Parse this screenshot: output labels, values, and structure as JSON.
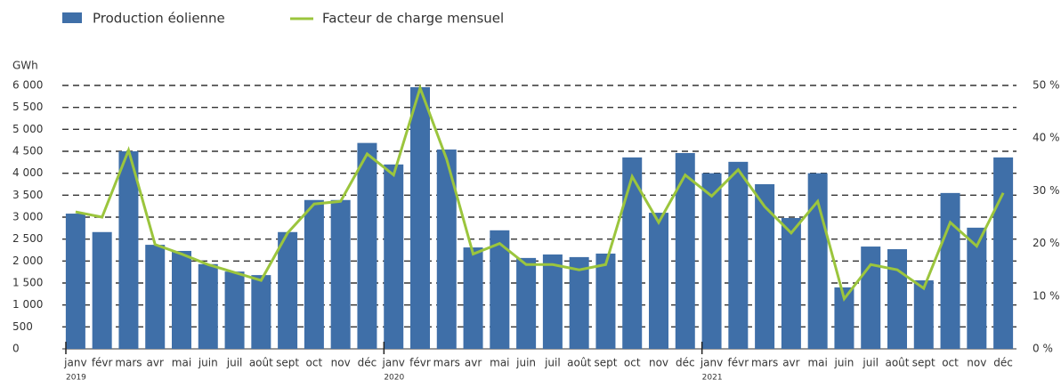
{
  "chart_data": {
    "type": "bar_line",
    "y_axis_label": "GWh",
    "categories": [
      "janv",
      "févr",
      "mars",
      "avr",
      "mai",
      "juin",
      "juil",
      "août",
      "sept",
      "oct",
      "nov",
      "déc",
      "janv",
      "févr",
      "mars",
      "avr",
      "mai",
      "juin",
      "juil",
      "août",
      "sept",
      "oct",
      "nov",
      "déc",
      "janv",
      "févr",
      "mars",
      "avr",
      "mai",
      "juin",
      "juil",
      "août",
      "sept",
      "oct",
      "nov",
      "déc"
    ],
    "year_labels": [
      "2019",
      "2020",
      "2021"
    ],
    "series": [
      {
        "name": "Production éolienne",
        "color": "#3f6fa8",
        "kind": "bar",
        "values": [
          3080,
          2660,
          4500,
          2370,
          2230,
          1930,
          1760,
          1680,
          2660,
          3390,
          3390,
          4690,
          4200,
          5960,
          4540,
          2310,
          2700,
          2070,
          2150,
          2090,
          2170,
          4360,
          3100,
          4460,
          4000,
          4260,
          3750,
          2980,
          4000,
          1400,
          2330,
          2270,
          1560,
          3550,
          2760,
          4360
        ]
      },
      {
        "name": "Facteur de charge mensuel",
        "color": "#9bc53d",
        "kind": "line",
        "axis": "y2",
        "values": [
          26,
          25,
          37.7,
          19.8,
          18,
          16,
          14.5,
          13,
          22,
          27.5,
          28,
          37,
          33,
          49.5,
          36,
          18,
          20,
          16,
          16,
          15,
          16,
          32.7,
          24,
          33,
          29,
          34,
          27,
          22,
          28,
          9.5,
          16,
          15,
          11.5,
          24,
          19.5,
          29.6
        ]
      }
    ],
    "ylim": [
      0,
      6000
    ],
    "yticks": [
      0,
      500,
      {
        "value": 1000,
        "label": "1 000"
      },
      {
        "value": 1500,
        "label": "1 500"
      },
      {
        "value": 2000,
        "label": "2 000"
      },
      {
        "value": 2500,
        "label": "2 500"
      },
      {
        "value": 3000,
        "label": "3 000"
      },
      {
        "value": 3500,
        "label": "3 500"
      },
      {
        "value": 4000,
        "label": "4 000"
      },
      {
        "value": 4500,
        "label": "4 500"
      },
      {
        "value": 5000,
        "label": "5 000"
      },
      {
        "value": 5500,
        "label": "5 500"
      },
      {
        "value": 6000,
        "label": "6 000"
      }
    ],
    "y2lim": [
      0,
      50
    ],
    "y2ticks": [
      {
        "value": 0,
        "label": "0 %"
      },
      {
        "value": 10,
        "label": "10 %"
      },
      {
        "value": 20,
        "label": "20 %"
      },
      {
        "value": 30,
        "label": "30 %"
      },
      {
        "value": 40,
        "label": "40 %"
      },
      {
        "value": 50,
        "label": "50 %"
      }
    ],
    "grid": true
  }
}
